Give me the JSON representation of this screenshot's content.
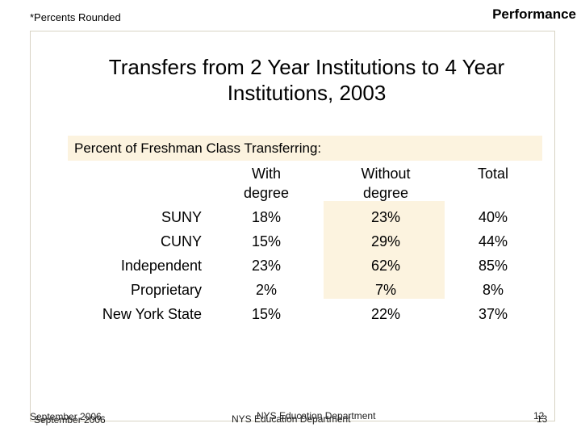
{
  "header": {
    "note": "*Percents Rounded",
    "section_title": "Performance"
  },
  "slide": {
    "title_line1": "Transfers from 2 Year Institutions to 4 Year",
    "title_line2": "Institutions, 2003",
    "subheading": "Percent of Freshman Class Transferring:"
  },
  "table": {
    "columns": [
      {
        "line1": "With",
        "line2": "degree"
      },
      {
        "line1": "Without",
        "line2": "degree"
      },
      {
        "line1": "Total",
        "line2": ""
      }
    ],
    "rows": [
      {
        "label": "SUNY",
        "with": "18%",
        "without": "23%",
        "total": "40%"
      },
      {
        "label": "CUNY",
        "with": "15%",
        "without": "29%",
        "total": "44%"
      },
      {
        "label": "Independent",
        "with": "23%",
        "without": "62%",
        "total": "85%"
      },
      {
        "label": "Proprietary",
        "with": "2%",
        "without": "7%",
        "total": "8%"
      },
      {
        "label": "New York State",
        "with": "15%",
        "without": "22%",
        "total": "37%"
      }
    ]
  },
  "footer": {
    "date_a": "September 2006",
    "date_b": "September 2006",
    "org_a": "NYS Education Department",
    "org_b": "NYS Education Department",
    "page_a": "12",
    "page_b": "13"
  },
  "colors": {
    "highlight": "#fcf3df",
    "frame_border": "#d8d3c4"
  }
}
